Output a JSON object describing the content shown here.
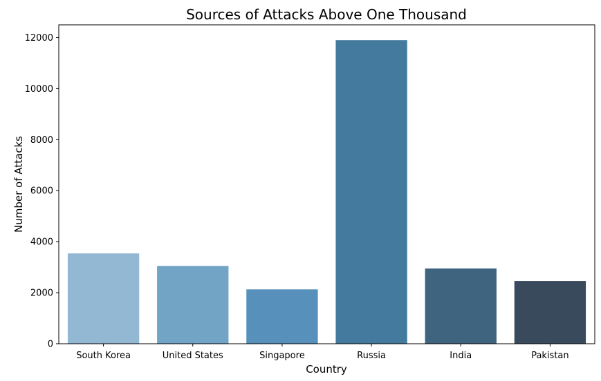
{
  "chart_data": {
    "type": "bar",
    "title": "Sources of Attacks Above One Thousand",
    "xlabel": "Country",
    "ylabel": "Number of Attacks",
    "categories": [
      "South Korea",
      "United States",
      "Singapore",
      "Russia",
      "India",
      "Pakistan"
    ],
    "values": [
      3540,
      3050,
      2130,
      11900,
      2950,
      2460
    ],
    "colors": [
      "#93b8d3",
      "#72a4c6",
      "#5790ba",
      "#457a9f",
      "#3f6480",
      "#384a5c"
    ],
    "ylim": [
      0,
      12500
    ],
    "yticks": [
      0,
      2000,
      4000,
      6000,
      8000,
      10000,
      12000
    ],
    "ytick_labels": [
      "0",
      "2000",
      "4000",
      "6000",
      "8000",
      "10000",
      "12000"
    ],
    "grid": false,
    "legend": "none"
  }
}
